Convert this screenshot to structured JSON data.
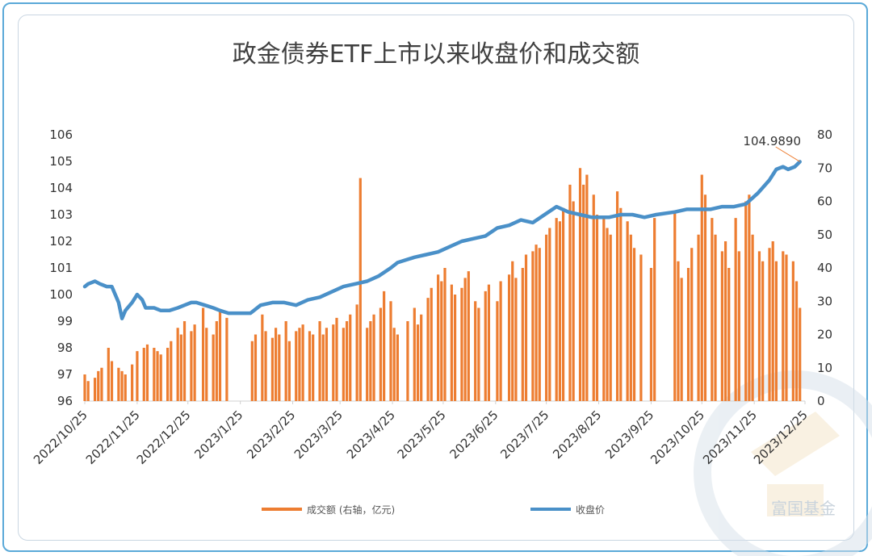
{
  "chart_data": {
    "type": "bar+line",
    "title": "政金债券ETF上市以来收盘价和成交额",
    "x_tick_labels": [
      "2022/10/25",
      "2022/11/25",
      "2022/12/25",
      "2023/1/25",
      "2023/2/25",
      "2023/3/25",
      "2023/4/25",
      "2023/5/25",
      "2023/6/25",
      "2023/7/25",
      "2023/8/25",
      "2023/9/25",
      "2023/10/25",
      "2023/11/25",
      "2023/12/25"
    ],
    "y_left": {
      "min": 96,
      "max": 106,
      "ticks": [
        "96",
        "97",
        "98",
        "99",
        "100",
        "101",
        "102",
        "103",
        "104",
        "105",
        "106"
      ]
    },
    "y_right": {
      "min": 0,
      "max": 80,
      "ticks": [
        "0",
        "10",
        "20",
        "30",
        "40",
        "50",
        "60",
        "70",
        "80"
      ]
    },
    "series": [
      {
        "name": "成交额 (右轴，亿元)",
        "kind": "bar",
        "axis": "right",
        "color": "#ed7d31",
        "points": [
          [
            "2022/10/25",
            8
          ],
          [
            "2022/10/27",
            6
          ],
          [
            "2022/10/31",
            7
          ],
          [
            "2022/11/2",
            9
          ],
          [
            "2022/11/4",
            10
          ],
          [
            "2022/11/8",
            16
          ],
          [
            "2022/11/10",
            12
          ],
          [
            "2022/11/14",
            10
          ],
          [
            "2022/11/16",
            9
          ],
          [
            "2022/11/18",
            8
          ],
          [
            "2022/11/22",
            11
          ],
          [
            "2022/11/25",
            15
          ],
          [
            "2022/11/29",
            16
          ],
          [
            "2022/12/1",
            17
          ],
          [
            "2022/12/5",
            16
          ],
          [
            "2022/12/7",
            15
          ],
          [
            "2022/12/9",
            14
          ],
          [
            "2022/12/13",
            16
          ],
          [
            "2022/12/15",
            18
          ],
          [
            "2022/12/19",
            22
          ],
          [
            "2022/12/21",
            20
          ],
          [
            "2022/12/23",
            24
          ],
          [
            "2022/12/27",
            21
          ],
          [
            "2022/12/29",
            23
          ],
          [
            "2023/1/3",
            28
          ],
          [
            "2023/1/5",
            22
          ],
          [
            "2023/1/9",
            20
          ],
          [
            "2023/1/11",
            24
          ],
          [
            "2023/1/13",
            27
          ],
          [
            "2023/1/17",
            25
          ],
          [
            "2023/2/1",
            18
          ],
          [
            "2023/2/3",
            20
          ],
          [
            "2023/2/7",
            26
          ],
          [
            "2023/2/9",
            21
          ],
          [
            "2023/2/13",
            19
          ],
          [
            "2023/2/15",
            22
          ],
          [
            "2023/2/17",
            20
          ],
          [
            "2023/2/21",
            24
          ],
          [
            "2023/2/23",
            18
          ],
          [
            "2023/2/27",
            21
          ],
          [
            "2023/3/1",
            22
          ],
          [
            "2023/3/3",
            23
          ],
          [
            "2023/3/7",
            21
          ],
          [
            "2023/3/9",
            20
          ],
          [
            "2023/3/13",
            24
          ],
          [
            "2023/3/15",
            20
          ],
          [
            "2023/3/17",
            22
          ],
          [
            "2023/3/21",
            23
          ],
          [
            "2023/3/23",
            25
          ],
          [
            "2023/3/27",
            22
          ],
          [
            "2023/3/29",
            24
          ],
          [
            "2023/3/31",
            26
          ],
          [
            "2023/4/4",
            29
          ],
          [
            "2023/4/6",
            67
          ],
          [
            "2023/4/10",
            22
          ],
          [
            "2023/4/12",
            24
          ],
          [
            "2023/4/14",
            26
          ],
          [
            "2023/4/18",
            28
          ],
          [
            "2023/4/20",
            33
          ],
          [
            "2023/4/24",
            30
          ],
          [
            "2023/4/26",
            22
          ],
          [
            "2023/4/28",
            20
          ],
          [
            "2023/5/4",
            24
          ],
          [
            "2023/5/8",
            28
          ],
          [
            "2023/5/10",
            23
          ],
          [
            "2023/5/12",
            26
          ],
          [
            "2023/5/16",
            31
          ],
          [
            "2023/5/18",
            34
          ],
          [
            "2023/5/22",
            38
          ],
          [
            "2023/5/24",
            36
          ],
          [
            "2023/5/26",
            40
          ],
          [
            "2023/5/30",
            35
          ],
          [
            "2023/6/1",
            32
          ],
          [
            "2023/6/5",
            34
          ],
          [
            "2023/6/7",
            37
          ],
          [
            "2023/6/9",
            39
          ],
          [
            "2023/6/13",
            30
          ],
          [
            "2023/6/15",
            28
          ],
          [
            "2023/6/19",
            33
          ],
          [
            "2023/6/21",
            35
          ],
          [
            "2023/6/26",
            30
          ],
          [
            "2023/6/28",
            36
          ],
          [
            "2023/7/3",
            38
          ],
          [
            "2023/7/5",
            42
          ],
          [
            "2023/7/7",
            37
          ],
          [
            "2023/7/11",
            40
          ],
          [
            "2023/7/13",
            44
          ],
          [
            "2023/7/17",
            45
          ],
          [
            "2023/7/19",
            47
          ],
          [
            "2023/7/21",
            46
          ],
          [
            "2023/7/25",
            50
          ],
          [
            "2023/7/27",
            52
          ],
          [
            "2023/7/31",
            55
          ],
          [
            "2023/8/2",
            54
          ],
          [
            "2023/8/4",
            58
          ],
          [
            "2023/8/8",
            65
          ],
          [
            "2023/8/10",
            60
          ],
          [
            "2023/8/14",
            70
          ],
          [
            "2023/8/16",
            65
          ],
          [
            "2023/8/18",
            68
          ],
          [
            "2023/8/22",
            62
          ],
          [
            "2023/8/24",
            56
          ],
          [
            "2023/8/28",
            55
          ],
          [
            "2023/8/30",
            52
          ],
          [
            "2023/9/1",
            50
          ],
          [
            "2023/9/5",
            63
          ],
          [
            "2023/9/7",
            58
          ],
          [
            "2023/9/11",
            54
          ],
          [
            "2023/9/13",
            50
          ],
          [
            "2023/9/15",
            46
          ],
          [
            "2023/9/19",
            44
          ],
          [
            "2023/9/25",
            40
          ],
          [
            "2023/9/27",
            55
          ],
          [
            "2023/10/9",
            57
          ],
          [
            "2023/10/11",
            42
          ],
          [
            "2023/10/13",
            37
          ],
          [
            "2023/10/17",
            40
          ],
          [
            "2023/10/19",
            46
          ],
          [
            "2023/10/23",
            50
          ],
          [
            "2023/10/25",
            68
          ],
          [
            "2023/10/27",
            62
          ],
          [
            "2023/10/31",
            55
          ],
          [
            "2023/11/2",
            50
          ],
          [
            "2023/11/6",
            45
          ],
          [
            "2023/11/8",
            48
          ],
          [
            "2023/11/10",
            40
          ],
          [
            "2023/11/14",
            55
          ],
          [
            "2023/11/16",
            45
          ],
          [
            "2023/11/20",
            60
          ],
          [
            "2023/11/22",
            62
          ],
          [
            "2023/11/24",
            50
          ],
          [
            "2023/11/28",
            45
          ],
          [
            "2023/11/30",
            42
          ],
          [
            "2023/12/4",
            46
          ],
          [
            "2023/12/6",
            48
          ],
          [
            "2023/12/8",
            42
          ],
          [
            "2023/12/12",
            45
          ],
          [
            "2023/12/14",
            44
          ],
          [
            "2023/12/18",
            42
          ],
          [
            "2023/12/20",
            36
          ],
          [
            "2023/12/22",
            28
          ]
        ]
      },
      {
        "name": "收盘价",
        "kind": "line",
        "axis": "left",
        "color": "#4a90c8",
        "points": [
          [
            "2022/10/25",
            100.3
          ],
          [
            "2022/10/27",
            100.4
          ],
          [
            "2022/10/31",
            100.5
          ],
          [
            "2022/11/3",
            100.4
          ],
          [
            "2022/11/7",
            100.3
          ],
          [
            "2022/11/10",
            100.3
          ],
          [
            "2022/11/14",
            99.7
          ],
          [
            "2022/11/16",
            99.1
          ],
          [
            "2022/11/18",
            99.4
          ],
          [
            "2022/11/22",
            99.7
          ],
          [
            "2022/11/25",
            100.0
          ],
          [
            "2022/11/28",
            99.8
          ],
          [
            "2022/11/30",
            99.5
          ],
          [
            "2022/12/5",
            99.5
          ],
          [
            "2022/12/9",
            99.4
          ],
          [
            "2022/12/14",
            99.4
          ],
          [
            "2022/12/19",
            99.5
          ],
          [
            "2022/12/23",
            99.6
          ],
          [
            "2022/12/27",
            99.7
          ],
          [
            "2022/12/30",
            99.7
          ],
          [
            "2023/1/4",
            99.6
          ],
          [
            "2023/1/9",
            99.5
          ],
          [
            "2023/1/13",
            99.4
          ],
          [
            "2023/1/18",
            99.3
          ],
          [
            "2023/1/25",
            99.3
          ],
          [
            "2023/1/31",
            99.3
          ],
          [
            "2023/2/6",
            99.6
          ],
          [
            "2023/2/13",
            99.7
          ],
          [
            "2023/2/20",
            99.7
          ],
          [
            "2023/2/27",
            99.6
          ],
          [
            "2023/3/6",
            99.8
          ],
          [
            "2023/3/13",
            99.9
          ],
          [
            "2023/3/20",
            100.1
          ],
          [
            "2023/3/27",
            100.3
          ],
          [
            "2023/4/3",
            100.4
          ],
          [
            "2023/4/10",
            100.5
          ],
          [
            "2023/4/17",
            100.7
          ],
          [
            "2023/4/24",
            101.0
          ],
          [
            "2023/4/28",
            101.2
          ],
          [
            "2023/5/8",
            101.4
          ],
          [
            "2023/5/15",
            101.5
          ],
          [
            "2023/5/22",
            101.6
          ],
          [
            "2023/5/29",
            101.8
          ],
          [
            "2023/6/5",
            102.0
          ],
          [
            "2023/6/12",
            102.1
          ],
          [
            "2023/6/19",
            102.2
          ],
          [
            "2023/6/26",
            102.5
          ],
          [
            "2023/7/3",
            102.6
          ],
          [
            "2023/7/10",
            102.8
          ],
          [
            "2023/7/17",
            102.7
          ],
          [
            "2023/7/24",
            103.0
          ],
          [
            "2023/7/31",
            103.3
          ],
          [
            "2023/8/7",
            103.1
          ],
          [
            "2023/8/14",
            103.0
          ],
          [
            "2023/8/21",
            102.9
          ],
          [
            "2023/8/25",
            102.9
          ],
          [
            "2023/8/31",
            102.9
          ],
          [
            "2023/9/7",
            103.0
          ],
          [
            "2023/9/14",
            103.0
          ],
          [
            "2023/9/21",
            102.9
          ],
          [
            "2023/9/28",
            103.0
          ],
          [
            "2023/10/9",
            103.1
          ],
          [
            "2023/10/16",
            103.2
          ],
          [
            "2023/10/23",
            103.2
          ],
          [
            "2023/10/30",
            103.2
          ],
          [
            "2023/11/6",
            103.3
          ],
          [
            "2023/11/13",
            103.3
          ],
          [
            "2023/11/20",
            103.4
          ],
          [
            "2023/11/27",
            103.8
          ],
          [
            "2023/12/4",
            104.3
          ],
          [
            "2023/12/8",
            104.7
          ],
          [
            "2023/12/12",
            104.8
          ],
          [
            "2023/12/15",
            104.7
          ],
          [
            "2023/12/19",
            104.8
          ],
          [
            "2023/12/22",
            104.989
          ]
        ]
      }
    ],
    "annotation": {
      "text": "104.9890",
      "series": "收盘价",
      "at": "2023/12/22"
    },
    "legend": {
      "placement": "bottom",
      "items": [
        {
          "label": "成交额 (右轴，亿元)",
          "color": "#ed7d31"
        },
        {
          "label": "收盘价",
          "color": "#4a90c8"
        }
      ]
    }
  },
  "watermark": {
    "text": "富国基金"
  },
  "colors": {
    "frame": "#5aa9d8",
    "bar": "#ed7d31",
    "line": "#4a90c8"
  }
}
